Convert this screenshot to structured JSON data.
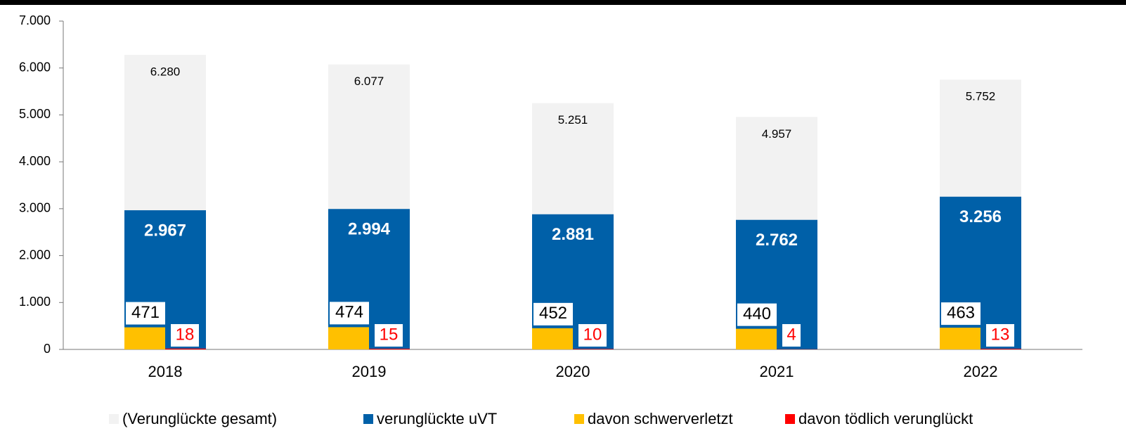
{
  "chart_data": {
    "type": "bar",
    "categories": [
      "2018",
      "2019",
      "2020",
      "2021",
      "2022"
    ],
    "series": [
      {
        "name": "(Verunglückte gesamt)",
        "color": "#f2f2f2",
        "values": [
          6280,
          6077,
          5251,
          4957,
          5752
        ],
        "value_labels": [
          "6.280",
          "6.077",
          "5.251",
          "4.957",
          "5.752"
        ]
      },
      {
        "name": "verunglückte uVT",
        "color": "#0060a8",
        "values": [
          2967,
          2994,
          2881,
          2762,
          3256
        ],
        "value_labels": [
          "2.967",
          "2.994",
          "2.881",
          "2.762",
          "3.256"
        ]
      },
      {
        "name": "davon schwerverletzt",
        "color": "#ffc000",
        "values": [
          471,
          474,
          452,
          440,
          463
        ]
      },
      {
        "name": "davon tödlich verunglückt",
        "color": "#ff0000",
        "values": [
          18,
          15,
          10,
          4,
          13
        ]
      }
    ],
    "ylim": [
      0,
      7000
    ],
    "yticks": [
      0,
      {
        "value": 1000,
        "label": "1.000"
      },
      {
        "value": 2000,
        "label": "2.000"
      },
      {
        "value": 3000,
        "label": "3.000"
      },
      {
        "value": 4000,
        "label": "4.000"
      },
      {
        "value": 5000,
        "label": "5.000"
      },
      {
        "value": 6000,
        "label": "6.000"
      },
      {
        "value": 7000,
        "label": "7.000"
      }
    ],
    "legend": "bottom"
  }
}
